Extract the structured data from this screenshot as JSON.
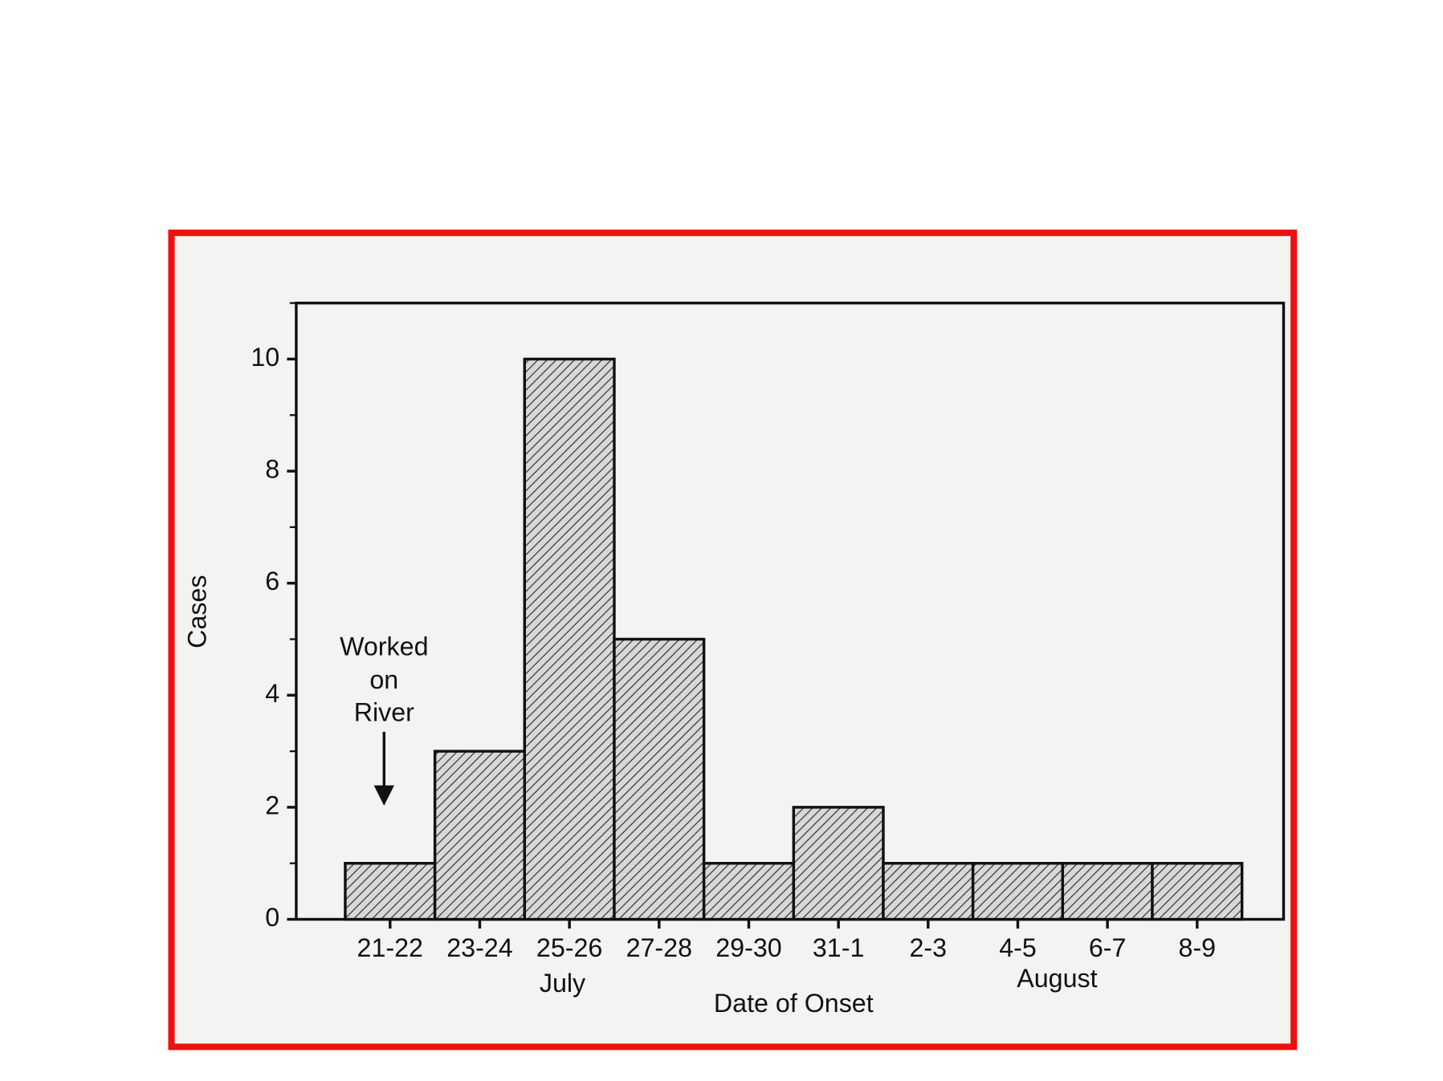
{
  "chart_data": {
    "type": "bar",
    "y_label": "Cases",
    "x_label": "Date of Onset",
    "categories": [
      "21-22",
      "23-24",
      "25-26",
      "27-28",
      "29-30",
      "31-1",
      "2-3",
      "4-5",
      "6-7",
      "8-9"
    ],
    "values": [
      1,
      3,
      10,
      5,
      1,
      2,
      1,
      1,
      1,
      1
    ],
    "month_labels": [
      "July",
      "August"
    ],
    "annotation": [
      "Worked",
      "on",
      "River"
    ],
    "ylim": [
      0,
      11
    ],
    "yticks": [
      0,
      2,
      4,
      6,
      8,
      10
    ],
    "yminorticks": [
      1,
      3,
      5,
      7,
      9,
      11
    ],
    "color": "#6e6e6e",
    "frame_color": "#ee1111",
    "grid": false
  }
}
